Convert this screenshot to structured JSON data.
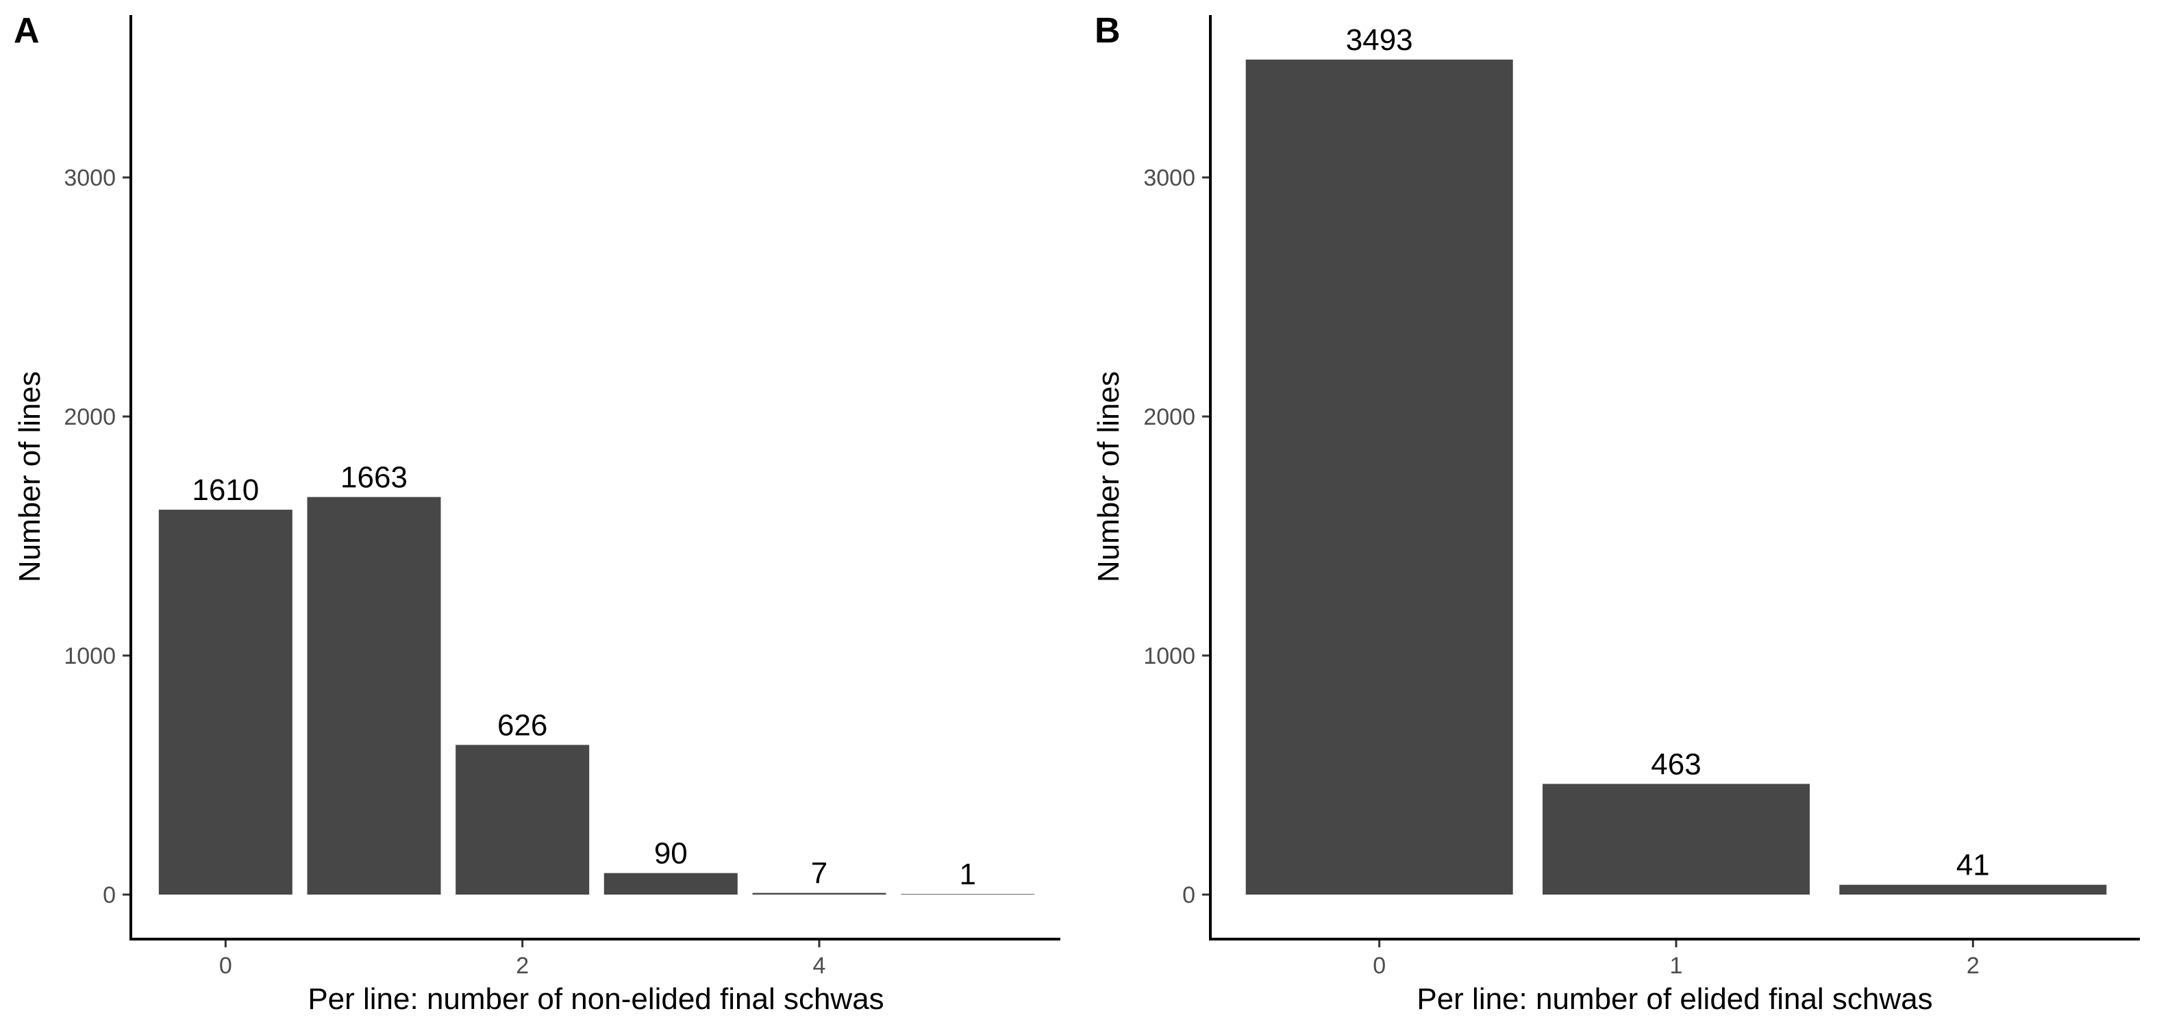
{
  "colors": {
    "bar": "#474747",
    "axis": "#000000",
    "tick_text": "#4d4d4d"
  },
  "chart_data": [
    {
      "type": "bar",
      "panel_tag": "A",
      "x": [
        0,
        1,
        2,
        3,
        4,
        5
      ],
      "values": [
        1610,
        1663,
        626,
        90,
        7,
        1
      ],
      "data_labels": [
        "1610",
        "1663",
        "626",
        "90",
        "7",
        "1"
      ],
      "xticks": [
        "0",
        "2",
        "4"
      ],
      "xtick_values": [
        0,
        2,
        4
      ],
      "xlim": [
        -0.5,
        5.5
      ],
      "yticks": [
        "0",
        "1000",
        "2000",
        "3000"
      ],
      "ylim": [
        0,
        3493
      ],
      "xlabel": "Per line: number of non-elided final schwas",
      "ylabel": "Number of lines",
      "grid": false
    },
    {
      "type": "bar",
      "panel_tag": "B",
      "x": [
        0,
        1,
        2
      ],
      "values": [
        3493,
        463,
        41
      ],
      "data_labels": [
        "3493",
        "463",
        "41"
      ],
      "xticks": [
        "0",
        "1",
        "2"
      ],
      "xtick_values": [
        0,
        1,
        2
      ],
      "xlim": [
        -0.5,
        2.5
      ],
      "yticks": [
        "0",
        "1000",
        "2000",
        "3000"
      ],
      "ylim": [
        0,
        3493
      ],
      "xlabel": "Per line: number of elided final schwas",
      "ylabel": "Number of lines",
      "grid": false
    }
  ]
}
